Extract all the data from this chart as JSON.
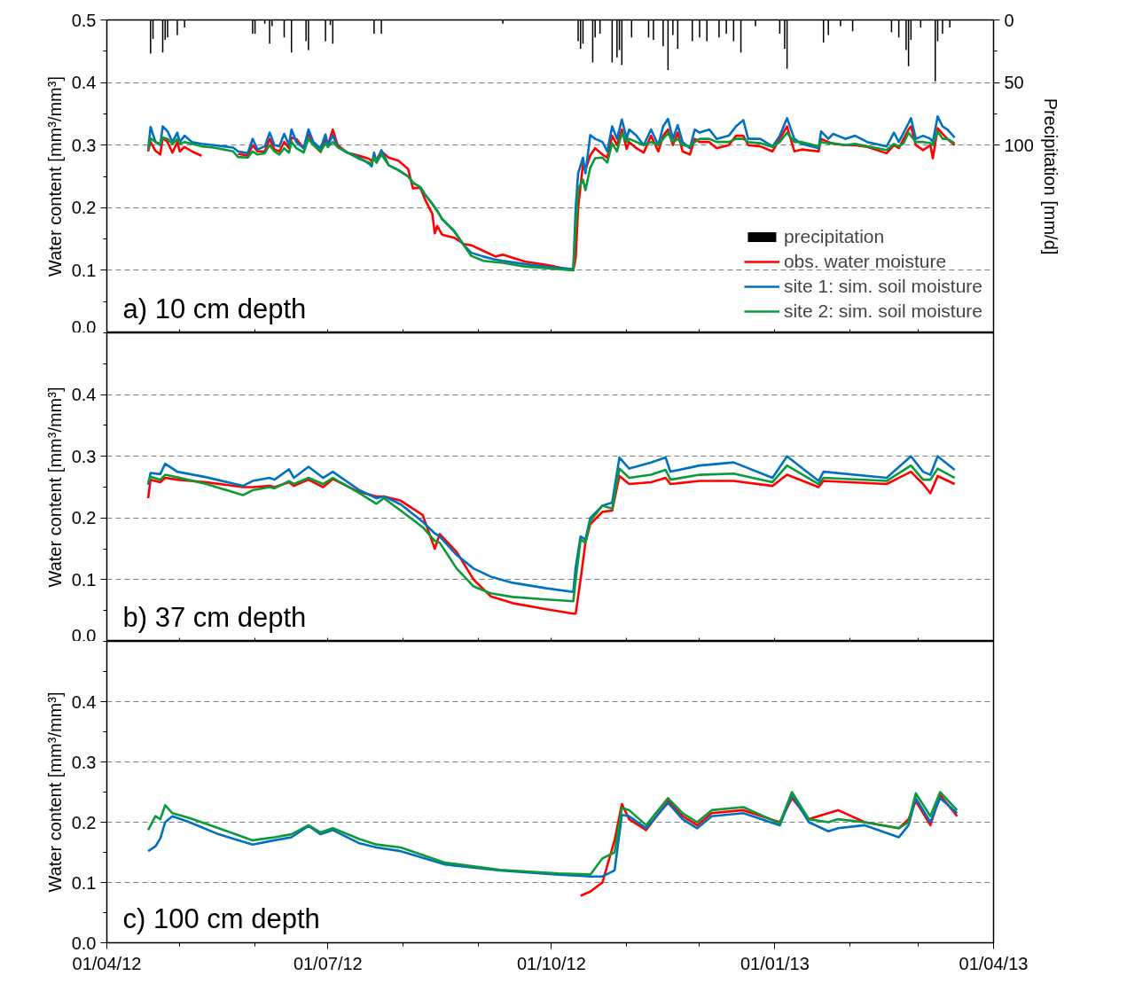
{
  "chart_data": [
    {
      "type": "line",
      "annotations": [
        "a) 10 cm depth"
      ],
      "ylabel": "Water content [mm³/mm³]",
      "y2label": "Precipitation [mm/d]",
      "xlim": [
        "2012-04-01",
        "2013-04-01"
      ],
      "xticks": [
        {
          "value": "2012-04-01",
          "label": null
        },
        {
          "value": "2012-05-01",
          "label": null
        },
        {
          "value": "2012-06-01",
          "label": null
        },
        {
          "value": "2012-07-01",
          "label": null
        },
        {
          "value": "2012-08-01",
          "label": null
        },
        {
          "value": "2012-09-01",
          "label": null
        },
        {
          "value": "2012-10-01",
          "label": null
        },
        {
          "value": "2012-11-01",
          "label": null
        },
        {
          "value": "2012-12-01",
          "label": null
        },
        {
          "value": "2013-01-01",
          "label": null
        },
        {
          "value": "2013-02-01",
          "label": null
        },
        {
          "value": "2013-03-01",
          "label": null
        },
        {
          "value": "2013-04-01",
          "label": null
        }
      ],
      "ylim": [
        0,
        0.5
      ],
      "yticks": [
        {
          "value": 0,
          "label": "0.0"
        },
        {
          "value": 0.05,
          "label": null
        },
        0.1,
        {
          "value": 0.15,
          "label": null
        },
        0.2,
        {
          "value": 0.25,
          "label": null
        },
        0.3,
        {
          "value": 0.35,
          "label": null
        },
        0.4,
        {
          "value": 0.45,
          "label": null
        },
        0.5
      ],
      "y2lim": [
        250,
        0
      ],
      "y2ticks": [
        0,
        {
          "value": 25,
          "label": null
        },
        50,
        {
          "value": 75,
          "label": null
        },
        100
      ],
      "grid": "y",
      "legend": "bottom right",
      "tick_labels": "y",
      "line_style": "solid",
      "x": [
        "2012-04-18",
        "2012-04-19",
        "2012-04-21",
        "2012-04-23",
        "2012-04-24",
        "2012-04-26",
        "2012-04-28",
        "2012-04-30",
        "2012-05-01",
        "2012-05-03",
        "2012-05-06",
        "2012-05-10",
        "2012-05-15",
        "2012-05-23",
        "2012-05-25",
        "2012-05-29",
        "2012-05-31",
        "2012-06-02",
        "2012-06-05",
        "2012-06-07",
        "2012-06-09",
        "2012-06-11",
        "2012-06-13",
        "2012-06-15",
        "2012-06-16",
        "2012-06-18",
        "2012-06-21",
        "2012-06-23",
        "2012-06-25",
        "2012-06-28",
        "2012-06-30",
        "2012-07-01",
        "2012-07-03",
        "2012-07-05",
        "2012-07-09",
        "2012-07-14",
        "2012-07-18",
        "2012-07-19",
        "2012-07-20",
        "2012-07-21",
        "2012-07-23",
        "2012-07-26",
        "2012-07-30",
        "2012-08-03",
        "2012-08-05",
        "2012-08-08",
        "2012-08-10",
        "2012-08-13",
        "2012-08-14",
        "2012-08-15",
        "2012-08-17",
        "2012-08-22",
        "2012-08-26",
        "2012-08-29",
        "2012-09-03",
        "2012-09-08",
        "2012-09-11",
        "2012-09-20",
        "2012-09-30",
        "2012-10-10",
        "2012-10-11",
        "2012-10-12",
        "2012-10-14",
        "2012-10-15",
        "2012-10-17",
        "2012-10-19",
        "2012-10-22",
        "2012-10-24",
        "2012-10-26",
        "2012-10-28",
        "2012-10-30",
        "2012-11-01",
        "2012-11-02",
        "2012-11-05",
        "2012-11-08",
        "2012-11-11",
        "2012-11-14",
        "2012-11-16",
        "2012-11-18",
        "2012-11-20",
        "2012-11-22",
        "2012-11-24",
        "2012-11-27",
        "2012-11-29",
        "2012-12-01",
        "2012-12-05",
        "2012-12-08",
        "2012-12-13",
        "2012-12-16",
        "2012-12-19",
        "2012-12-21",
        "2012-12-26",
        "2012-12-31",
        "2013-01-03",
        "2013-01-06",
        "2013-01-09",
        "2013-01-12",
        "2013-01-19",
        "2013-01-20",
        "2013-01-23",
        "2013-01-25",
        "2013-01-30",
        "2013-02-03",
        "2013-02-08",
        "2013-02-16",
        "2013-02-19",
        "2013-02-21",
        "2013-02-23",
        "2013-02-25",
        "2013-02-26",
        "2013-02-28",
        "2013-03-03",
        "2013-03-06",
        "2013-03-07",
        "2013-03-09",
        "2013-03-11",
        "2013-03-13",
        "2013-03-16"
      ],
      "series": [
        {
          "name": "precipitation",
          "type": "bar",
          "axis": "y2",
          "color": "#000000",
          "x": [
            "2012-04-19",
            "2012-04-20",
            "2012-04-24",
            "2012-04-25",
            "2012-04-26",
            "2012-04-30",
            "2012-05-03",
            "2012-05-31",
            "2012-06-01",
            "2012-06-05",
            "2012-06-07",
            "2012-06-08",
            "2012-06-13",
            "2012-06-16",
            "2012-06-22",
            "2012-06-23",
            "2012-06-30",
            "2012-07-02",
            "2012-07-03",
            "2012-07-20",
            "2012-07-23",
            "2012-09-11",
            "2012-10-12",
            "2012-10-13",
            "2012-10-14",
            "2012-10-18",
            "2012-10-19",
            "2012-10-21",
            "2012-10-26",
            "2012-10-28",
            "2012-10-29",
            "2012-10-30",
            "2012-11-03",
            "2012-11-10",
            "2012-11-12",
            "2012-11-16",
            "2012-11-18",
            "2012-11-20",
            "2012-11-22",
            "2012-11-28",
            "2012-12-01",
            "2012-12-04",
            "2012-12-09",
            "2012-12-12",
            "2012-12-15",
            "2012-12-18",
            "2012-12-24",
            "2013-01-03",
            "2013-01-05",
            "2013-01-06",
            "2013-01-21",
            "2013-01-23",
            "2013-01-28",
            "2013-02-02",
            "2013-02-18",
            "2013-02-21",
            "2013-02-24",
            "2013-02-25",
            "2013-02-26",
            "2013-03-02",
            "2013-03-08",
            "2013-03-09",
            "2013-03-11",
            "2013-03-14"
          ],
          "values": [
            27,
            15,
            26,
            16,
            14,
            12,
            6,
            11,
            11,
            3,
            19,
            5,
            14,
            26,
            17,
            24,
            17,
            4,
            19,
            11,
            11,
            3,
            17,
            23,
            19,
            34,
            14,
            11,
            34,
            30,
            24,
            36,
            14,
            14,
            16,
            21,
            40,
            12,
            23,
            17,
            14,
            17,
            14,
            11,
            17,
            26,
            5,
            11,
            23,
            39,
            18,
            12,
            5,
            9,
            10,
            14,
            24,
            37,
            16,
            6,
            49,
            17,
            11,
            6
          ]
        },
        {
          "name": "obs. water moisture",
          "color": "#ff0000",
          "values": [
            0.29,
            0.305,
            0.291,
            0.285,
            0.312,
            0.305,
            0.288,
            0.305,
            0.29,
            0.297,
            0.29,
            0.283,
            null,
            null,
            0.286,
            0.283,
            0.3,
            0.29,
            0.29,
            0.31,
            0.293,
            0.29,
            0.305,
            0.295,
            0.312,
            0.31,
            0.295,
            0.318,
            0.302,
            0.289,
            0.31,
            0.3,
            0.325,
            0.3,
            0.288,
            0.283,
            0.278,
            0.275,
            0.28,
            0.277,
            0.29,
            0.28,
            0.275,
            0.262,
            0.231,
            0.232,
            0.213,
            0.19,
            0.159,
            0.171,
            0.157,
            0.152,
            0.142,
            0.14,
            0.131,
            0.122,
            0.125,
            0.114,
            0.108,
            0.1,
            0.12,
            0.2,
            0.27,
            0.26,
            0.284,
            0.295,
            0.285,
            0.28,
            0.315,
            0.3,
            0.325,
            0.294,
            0.305,
            0.295,
            0.288,
            0.315,
            0.29,
            0.315,
            0.325,
            0.3,
            0.32,
            0.29,
            0.285,
            0.31,
            0.305,
            0.305,
            0.295,
            0.3,
            0.315,
            0.315,
            0.3,
            0.298,
            0.29,
            0.31,
            0.33,
            0.29,
            0.293,
            0.29,
            0.31,
            0.305,
            0.302,
            0.3,
            0.3,
            0.297,
            0.287,
            0.3,
            0.295,
            0.31,
            0.325,
            0.33,
            0.3,
            0.292,
            0.3,
            0.279,
            0.327,
            0.318,
            0.31,
            0.3
          ]
        },
        {
          "name": "site 1: sim. soil moisture",
          "color": "#0070c0",
          "values": [
            0.293,
            0.329,
            0.305,
            0.3,
            0.33,
            0.322,
            0.305,
            0.32,
            0.305,
            0.315,
            0.305,
            0.302,
            0.3,
            0.296,
            0.29,
            0.287,
            0.31,
            0.293,
            0.298,
            0.32,
            0.3,
            0.298,
            0.318,
            0.3,
            0.325,
            0.305,
            0.295,
            0.325,
            0.305,
            0.295,
            0.317,
            0.3,
            0.316,
            0.297,
            0.288,
            0.28,
            0.27,
            0.266,
            0.288,
            0.272,
            0.292,
            0.268,
            0.26,
            0.25,
            0.24,
            0.233,
            0.221,
            0.206,
            0.2,
            0.195,
            0.182,
            0.162,
            0.14,
            0.128,
            0.122,
            0.117,
            0.115,
            0.11,
            0.105,
            0.102,
            0.2,
            0.255,
            0.28,
            0.255,
            0.316,
            0.31,
            0.305,
            0.29,
            0.33,
            0.31,
            0.341,
            0.31,
            0.325,
            0.315,
            0.3,
            0.325,
            0.3,
            0.33,
            0.342,
            0.31,
            0.332,
            0.305,
            0.295,
            0.325,
            0.32,
            0.325,
            0.31,
            0.315,
            0.33,
            0.34,
            0.31,
            0.31,
            0.298,
            0.315,
            0.343,
            0.31,
            0.302,
            0.295,
            0.322,
            0.31,
            0.318,
            0.31,
            0.315,
            0.305,
            0.298,
            0.32,
            0.305,
            0.32,
            0.335,
            0.343,
            0.31,
            0.315,
            0.31,
            0.305,
            0.346,
            0.33,
            0.325,
            0.312
          ]
        },
        {
          "name": "site 2: sim. soil moisture",
          "color": "#0a9a3a",
          "values": [
            0.293,
            0.311,
            0.305,
            0.302,
            0.312,
            0.31,
            0.302,
            0.31,
            0.302,
            0.305,
            0.302,
            0.298,
            0.296,
            0.29,
            0.281,
            0.28,
            0.29,
            0.285,
            0.287,
            0.3,
            0.29,
            0.285,
            0.295,
            0.288,
            0.305,
            0.295,
            0.288,
            0.31,
            0.3,
            0.29,
            0.303,
            0.297,
            0.305,
            0.297,
            0.288,
            0.278,
            0.272,
            0.27,
            0.28,
            0.272,
            0.285,
            0.268,
            0.26,
            0.25,
            0.24,
            0.233,
            0.221,
            0.206,
            0.2,
            0.195,
            0.182,
            0.163,
            0.14,
            0.123,
            0.115,
            0.113,
            0.112,
            0.106,
            0.103,
            0.1,
            0.17,
            0.23,
            0.245,
            0.228,
            0.264,
            0.279,
            0.28,
            0.272,
            0.303,
            0.29,
            0.319,
            0.305,
            0.31,
            0.305,
            0.3,
            0.305,
            0.3,
            0.31,
            0.32,
            0.305,
            0.31,
            0.3,
            0.298,
            0.305,
            0.31,
            0.31,
            0.305,
            0.305,
            0.31,
            0.31,
            0.305,
            0.303,
            0.297,
            0.305,
            0.32,
            0.305,
            0.305,
            0.298,
            0.305,
            0.303,
            0.303,
            0.3,
            0.302,
            0.298,
            0.292,
            0.302,
            0.298,
            0.303,
            0.32,
            0.315,
            0.305,
            0.305,
            0.303,
            0.3,
            0.322,
            0.31,
            0.31,
            0.303
          ]
        }
      ]
    },
    {
      "type": "line",
      "annotations": [
        "b) 37 cm depth"
      ],
      "ylabel": "Water content [mm³/mm³]",
      "xlim": [
        "2012-04-01",
        "2013-04-01"
      ],
      "xticks": [
        {
          "value": "2012-04-01",
          "label": null
        },
        {
          "value": "2012-05-01",
          "label": null
        },
        {
          "value": "2012-06-01",
          "label": null
        },
        {
          "value": "2012-07-01",
          "label": null
        },
        {
          "value": "2012-08-01",
          "label": null
        },
        {
          "value": "2012-09-01",
          "label": null
        },
        {
          "value": "2012-10-01",
          "label": null
        },
        {
          "value": "2012-11-01",
          "label": null
        },
        {
          "value": "2012-12-01",
          "label": null
        },
        {
          "value": "2013-01-01",
          "label": null
        },
        {
          "value": "2013-02-01",
          "label": null
        },
        {
          "value": "2013-03-01",
          "label": null
        },
        {
          "value": "2013-04-01",
          "label": null
        }
      ],
      "ylim": [
        0,
        0.5
      ],
      "yticks": [
        {
          "value": 0,
          "label": "0.0"
        },
        {
          "value": 0.05,
          "label": null
        },
        0.1,
        {
          "value": 0.15,
          "label": null
        },
        0.2,
        {
          "value": 0.25,
          "label": null
        },
        0.3,
        {
          "value": 0.35,
          "label": null
        },
        0.4,
        {
          "value": 0.45,
          "label": null
        },
        {
          "value": 0.5,
          "label": null
        }
      ],
      "grid": "y",
      "tick_labels": "y",
      "line_style": "solid",
      "x": [
        "2012-04-18",
        "2012-04-19",
        "2012-04-23",
        "2012-04-25",
        "2012-04-30",
        "2012-05-12",
        "2012-05-27",
        "2012-05-31",
        "2012-06-07",
        "2012-06-09",
        "2012-06-15",
        "2012-06-17",
        "2012-06-23",
        "2012-06-29",
        "2012-07-03",
        "2012-07-14",
        "2012-07-21",
        "2012-07-24",
        "2012-07-31",
        "2012-08-09",
        "2012-08-14",
        "2012-08-16",
        "2012-08-23",
        "2012-08-30",
        "2012-09-06",
        "2012-09-15",
        "2012-09-29",
        "2012-10-10",
        "2012-10-11",
        "2012-10-13",
        "2012-10-15",
        "2012-10-17",
        "2012-10-22",
        "2012-10-26",
        "2012-10-29",
        "2012-11-02",
        "2012-11-11",
        "2012-11-17",
        "2012-11-19",
        "2012-12-01",
        "2012-12-15",
        "2012-12-31",
        "2013-01-06",
        "2013-01-19",
        "2013-01-21",
        "2013-02-16",
        "2013-02-26",
        "2013-03-03",
        "2013-03-06",
        "2013-03-09",
        "2013-03-16"
      ],
      "series": [
        {
          "color": "#ff0000",
          "values": [
            0.232,
            0.262,
            0.258,
            0.265,
            0.262,
            0.258,
            0.25,
            0.25,
            0.252,
            0.25,
            0.258,
            0.252,
            0.262,
            0.25,
            0.263,
            0.242,
            0.235,
            0.235,
            0.228,
            0.205,
            0.15,
            0.174,
            0.145,
            0.1,
            0.073,
            0.062,
            0.052,
            0.045,
            0.045,
            0.1,
            0.16,
            0.19,
            0.21,
            0.212,
            0.268,
            0.255,
            0.258,
            0.265,
            0.255,
            0.26,
            0.26,
            0.252,
            0.27,
            0.25,
            0.26,
            0.255,
            0.275,
            0.255,
            0.24,
            0.268,
            0.255
          ]
        },
        {
          "color": "#0070c0",
          "values": [
            0.254,
            0.273,
            0.271,
            0.288,
            0.275,
            0.266,
            0.252,
            0.26,
            0.265,
            0.262,
            0.279,
            0.265,
            0.283,
            0.265,
            0.275,
            0.245,
            0.232,
            0.235,
            0.222,
            0.194,
            0.175,
            0.17,
            0.14,
            0.118,
            0.105,
            0.095,
            0.086,
            0.08,
            0.12,
            0.17,
            0.165,
            0.2,
            0.22,
            0.225,
            0.298,
            0.28,
            0.29,
            0.298,
            0.275,
            0.285,
            0.29,
            0.265,
            0.3,
            0.26,
            0.275,
            0.265,
            0.3,
            0.275,
            0.27,
            0.3,
            0.278
          ]
        },
        {
          "color": "#0a9a3a",
          "values": [
            0.257,
            0.267,
            0.262,
            0.27,
            0.266,
            0.255,
            0.237,
            0.245,
            0.25,
            0.248,
            0.26,
            0.255,
            0.265,
            0.255,
            0.265,
            0.24,
            0.223,
            0.232,
            0.212,
            0.185,
            0.163,
            0.16,
            0.118,
            0.089,
            0.078,
            0.072,
            0.068,
            0.065,
            0.1,
            0.165,
            0.16,
            0.195,
            0.22,
            0.215,
            0.28,
            0.265,
            0.27,
            0.278,
            0.262,
            0.27,
            0.272,
            0.258,
            0.285,
            0.255,
            0.265,
            0.26,
            0.285,
            0.262,
            0.262,
            0.28,
            0.265
          ]
        }
      ]
    },
    {
      "type": "line",
      "annotations": [
        "c) 100 cm depth"
      ],
      "ylabel": "Water content [mm³/mm³]",
      "xlim": [
        "2012-04-01",
        "2013-04-01"
      ],
      "xticks": [
        {
          "value": "2012-04-01",
          "label": "01/04/12"
        },
        {
          "value": "2012-05-01",
          "label": null
        },
        {
          "value": "2012-06-01",
          "label": null
        },
        {
          "value": "2012-07-01",
          "label": "01/07/12"
        },
        {
          "value": "2012-08-01",
          "label": null
        },
        {
          "value": "2012-09-01",
          "label": null
        },
        {
          "value": "2012-10-01",
          "label": "01/10/12"
        },
        {
          "value": "2012-11-01",
          "label": null
        },
        {
          "value": "2012-12-01",
          "label": null
        },
        {
          "value": "2013-01-01",
          "label": "01/01/13"
        },
        {
          "value": "2013-02-01",
          "label": null
        },
        {
          "value": "2013-03-01",
          "label": null
        },
        {
          "value": "2013-04-01",
          "label": "01/04/13"
        }
      ],
      "ylim": [
        0,
        0.5
      ],
      "yticks": [
        {
          "value": 0,
          "label": "0.0"
        },
        {
          "value": 0.05,
          "label": null
        },
        0.1,
        {
          "value": 0.15,
          "label": null
        },
        0.2,
        {
          "value": 0.25,
          "label": null
        },
        0.3,
        {
          "value": 0.35,
          "label": null
        },
        0.4,
        {
          "value": 0.45,
          "label": null
        },
        {
          "value": 0.5,
          "label": null
        }
      ],
      "grid": "y",
      "line_style": "solid",
      "x": [
        "2012-04-18",
        "2012-04-21",
        "2012-04-23",
        "2012-04-25",
        "2012-04-28",
        "2012-05-05",
        "2012-05-17",
        "2012-05-31",
        "2012-06-09",
        "2012-06-16",
        "2012-06-23",
        "2012-06-28",
        "2012-07-03",
        "2012-07-14",
        "2012-07-21",
        "2012-07-31",
        "2012-08-18",
        "2012-09-10",
        "2012-10-04",
        "2012-10-13",
        "2012-10-17",
        "2012-10-22",
        "2012-10-27",
        "2012-10-30",
        "2012-11-02",
        "2012-11-09",
        "2012-11-18",
        "2012-11-24",
        "2012-11-30",
        "2012-12-06",
        "2012-12-19",
        "2013-01-03",
        "2013-01-08",
        "2013-01-15",
        "2013-01-23",
        "2013-01-27",
        "2013-02-07",
        "2013-02-21",
        "2013-02-25",
        "2013-02-28",
        "2013-03-06",
        "2013-03-10",
        "2013-03-17"
      ],
      "series": [
        {
          "color": "#ff0000",
          "values": [
            null,
            null,
            null,
            null,
            null,
            null,
            null,
            null,
            null,
            null,
            null,
            null,
            null,
            null,
            null,
            null,
            null,
            null,
            null,
            0.078,
            0.085,
            0.1,
            0.17,
            0.23,
            0.205,
            0.187,
            0.235,
            0.21,
            0.195,
            0.215,
            0.22,
            0.2,
            0.24,
            0.205,
            0.215,
            0.22,
            0.2,
            0.19,
            0.205,
            0.235,
            0.195,
            0.245,
            0.21
          ]
        },
        {
          "color": "#0070c0",
          "values": [
            0.152,
            0.16,
            0.173,
            0.2,
            0.21,
            0.2,
            0.18,
            0.163,
            0.17,
            0.175,
            0.194,
            0.18,
            0.187,
            0.165,
            0.158,
            0.152,
            0.13,
            0.12,
            0.113,
            0.111,
            0.11,
            0.11,
            0.12,
            0.212,
            0.21,
            0.19,
            0.232,
            0.205,
            0.19,
            0.21,
            0.215,
            0.195,
            0.245,
            0.2,
            0.185,
            0.19,
            0.195,
            0.175,
            0.195,
            0.24,
            0.2,
            0.24,
            0.215
          ]
        },
        {
          "color": "#0a9a3a",
          "values": [
            0.187,
            0.21,
            0.205,
            0.228,
            0.215,
            0.207,
            0.19,
            0.17,
            0.175,
            0.18,
            0.195,
            0.183,
            0.19,
            0.172,
            0.163,
            0.158,
            0.133,
            0.121,
            0.115,
            0.114,
            0.113,
            0.14,
            0.15,
            0.224,
            0.22,
            0.195,
            0.24,
            0.215,
            0.2,
            0.22,
            0.225,
            0.198,
            0.25,
            0.205,
            0.2,
            0.205,
            0.2,
            0.19,
            0.2,
            0.248,
            0.21,
            0.25,
            0.22
          ]
        }
      ]
    }
  ]
}
